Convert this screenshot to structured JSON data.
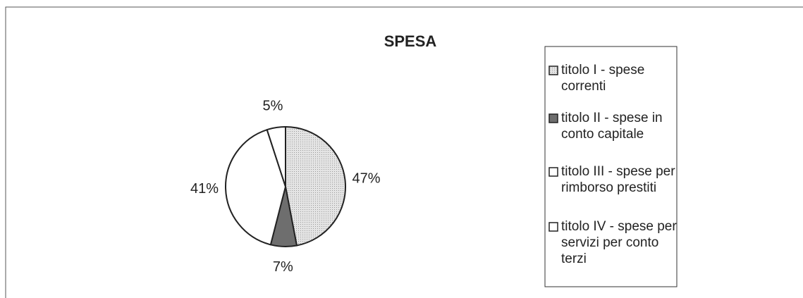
{
  "chart_data": {
    "type": "pie",
    "title": "SPESA",
    "categories": [
      "titolo I - spese correnti",
      "titolo II - spese in conto capitale",
      "titolo III - spese per rimborso prestiti",
      "titolo IV - spese per servizi per conto terzi"
    ],
    "values": [
      47,
      7,
      41,
      5
    ],
    "value_labels": [
      "47%",
      "7%",
      "41%",
      "5%"
    ],
    "colors": [
      "#d4d4d4",
      "#6e6e6e",
      "#ffffff",
      "#ffffff"
    ]
  }
}
